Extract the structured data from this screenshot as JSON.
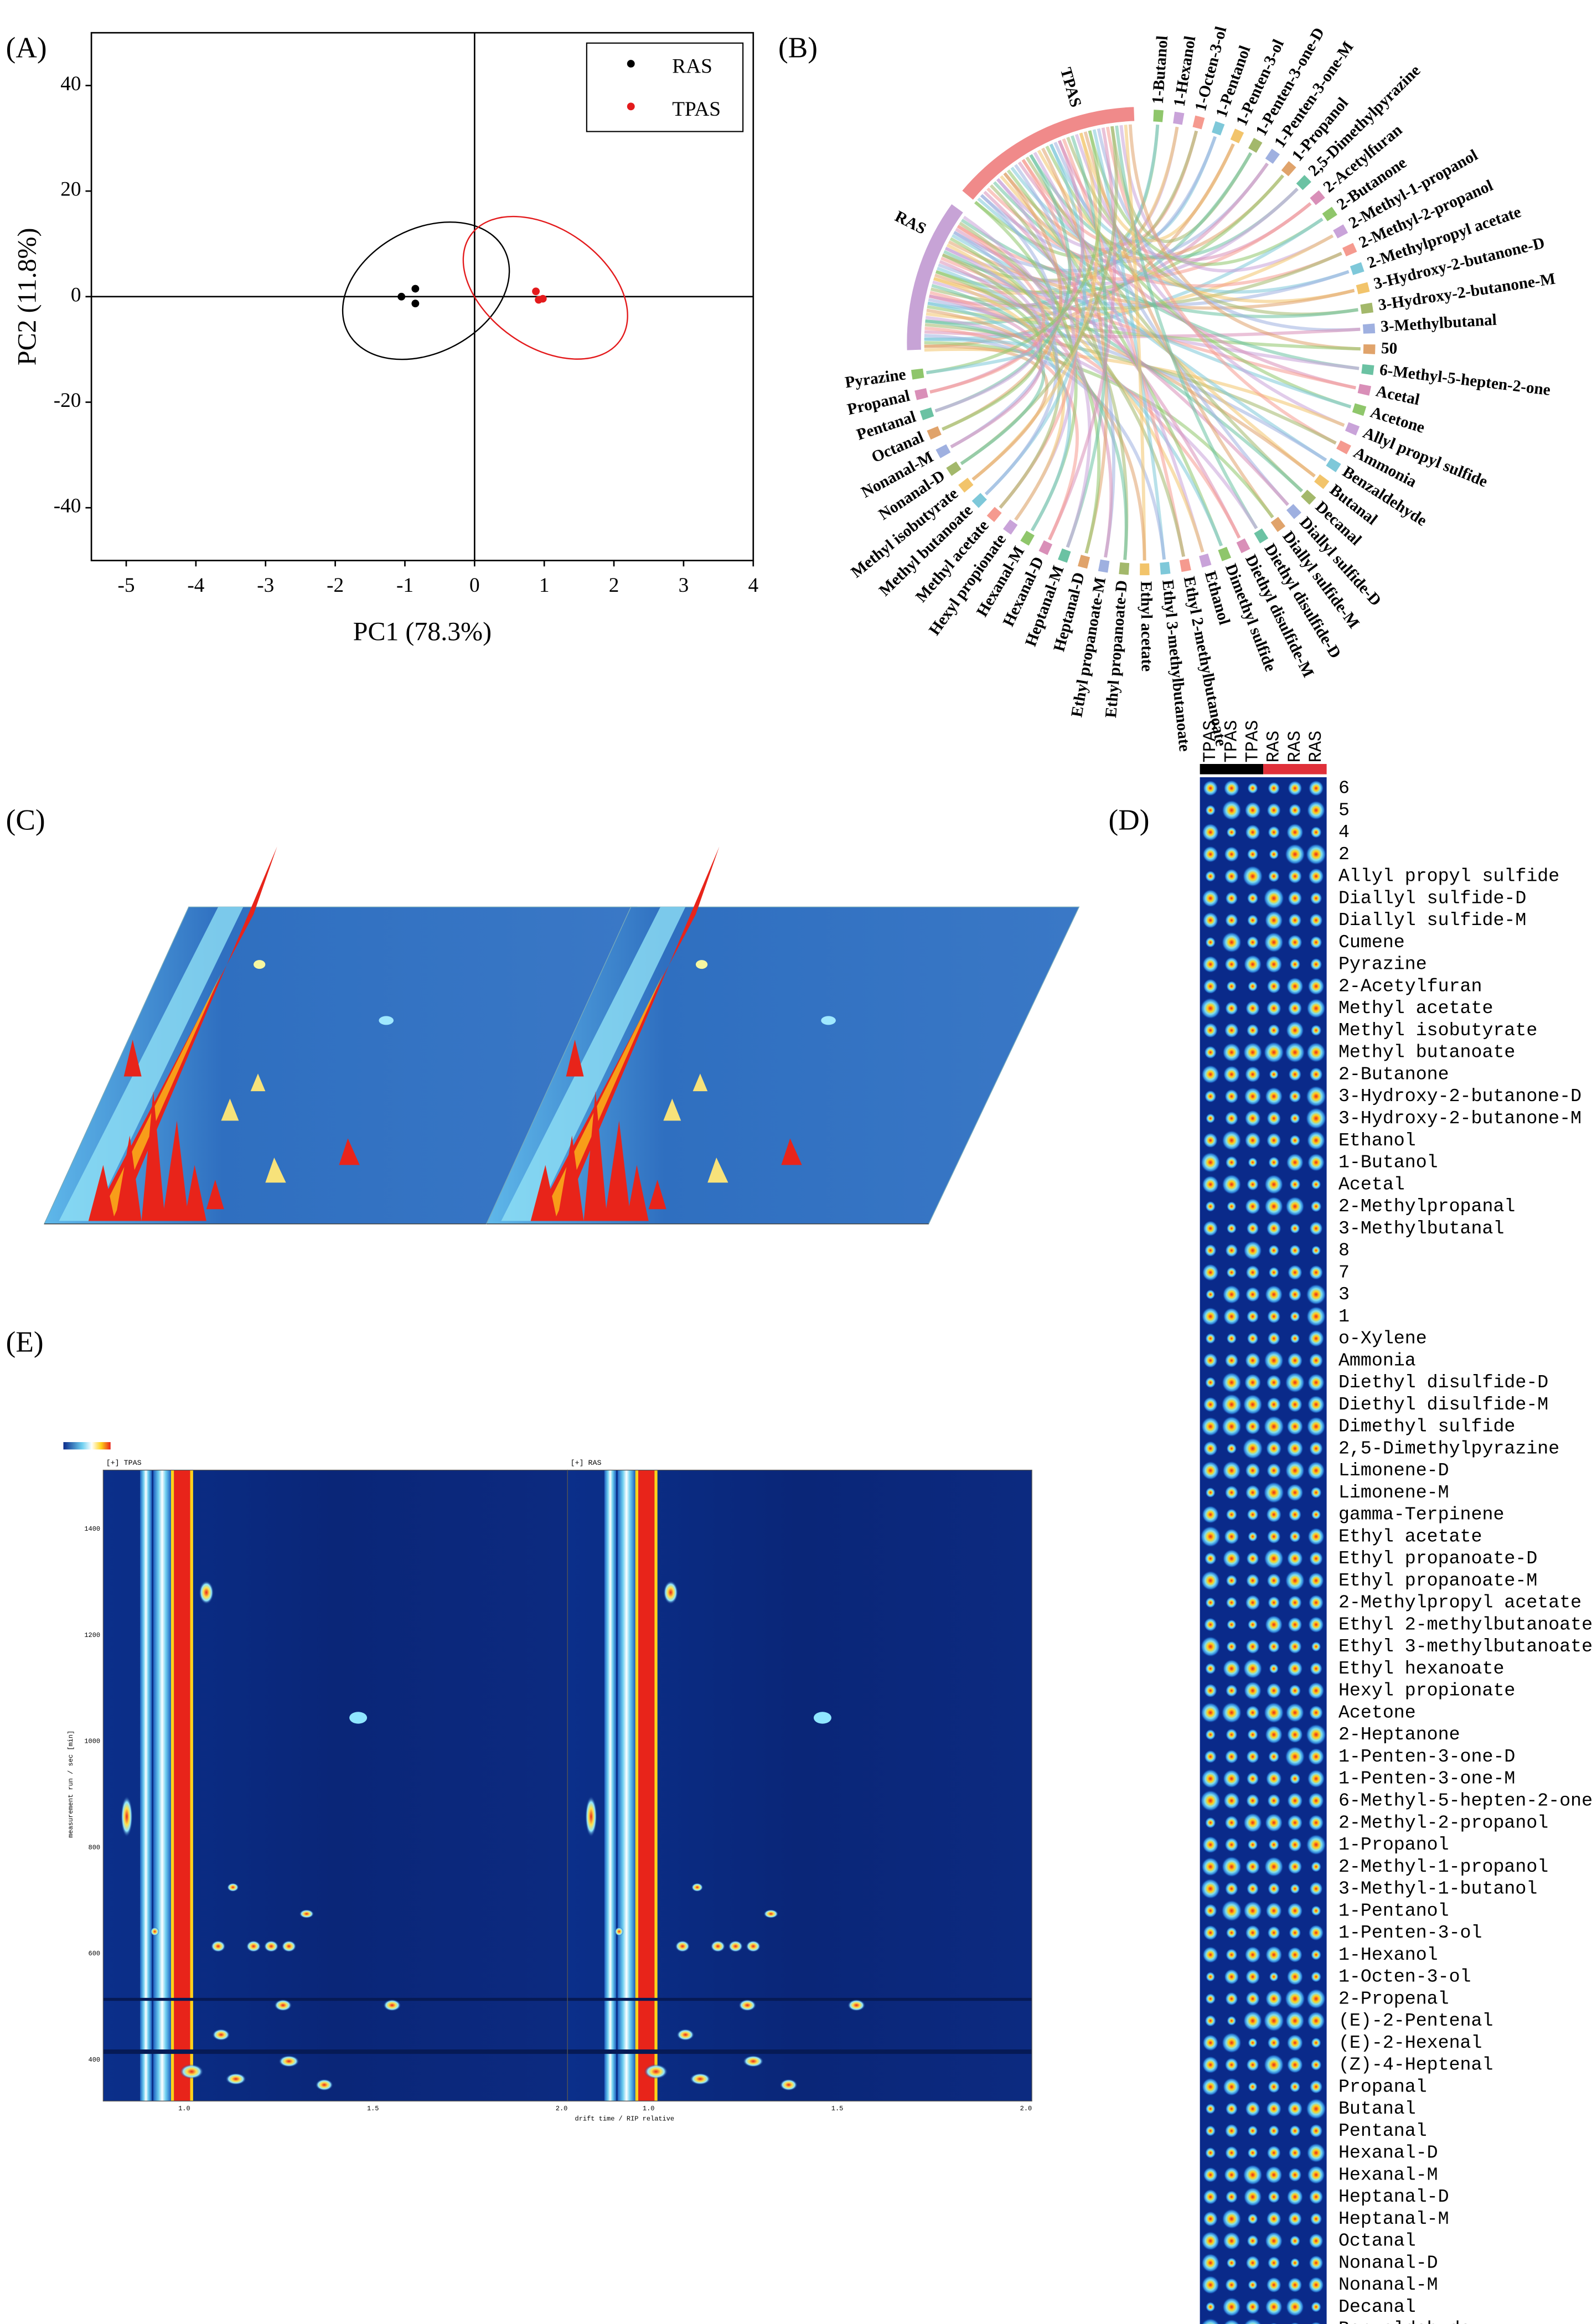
{
  "panel_labels": [
    "(A)",
    "(B)",
    "(C)",
    "(D)",
    "(E)"
  ],
  "chart_data": {
    "type": "scatter",
    "xlabel": "PC1 (78.3%)",
    "ylabel": "PC2 (11.8%)",
    "xlim": [
      -5.5,
      4
    ],
    "ylim": [
      -50,
      50
    ],
    "xticks": [
      -5,
      -4,
      -3,
      -2,
      -1,
      0,
      1,
      2,
      3,
      4
    ],
    "yticks": [
      -40,
      -20,
      0,
      20,
      40
    ],
    "legend": "upper right",
    "series": [
      {
        "name": "RAS",
        "color": "#000000",
        "x": [
          -1.05,
          -0.85,
          -0.85
        ],
        "values": [
          0,
          1.5,
          -1.3
        ]
      },
      {
        "name": "TPAS",
        "color": "#e31a1c",
        "x": [
          0.88,
          0.92,
          0.98
        ],
        "values": [
          1,
          -0.6,
          -0.4
        ]
      }
    ]
  },
  "chord": {
    "groups": [
      "TPAS",
      "RAS"
    ],
    "labels": [
      "1-Butanol",
      "1-Hexanol",
      "1-Octen-3-ol",
      "1-Pentanol",
      "1-Penten-3-ol",
      "1-Penten-3-one-D",
      "1-Penten-3-one-M",
      "1-Propanol",
      "2,5-Dimethylpyrazine",
      "2-Acetylfuran",
      "2-Butanone",
      "2-Methyl-1-propanol",
      "2-Methyl-2-propanol",
      "2-Methylpropyl acetate",
      "3-Hydroxy-2-butanone-D",
      "3-Hydroxy-2-butanone-M",
      "3-Methylbutanal",
      "50",
      "6-Methyl-5-hepten-2-one",
      "Acetal",
      "Acetone",
      "Allyl propyl sulfide",
      "Ammonia",
      "Benzaldehyde",
      "Butanal",
      "Decanal",
      "Diallyl sulfide-D",
      "Diallyl sulfide-M",
      "Diethyl disulfide-D",
      "Diethyl disulfide-M",
      "Dimethyl sulfide",
      "Ethanol",
      "Ethyl 2-methylbutanoate",
      "Ethyl 3-methylbutanoate",
      "Ethyl acetate",
      "Ethyl propanoate-D",
      "Ethyl propanoate-M",
      "Heptanal-D",
      "Heptanal-M",
      "Hexanal-D",
      "Hexanal-M",
      "Hexyl propionate",
      "Methyl acetate",
      "Methyl butanoate",
      "Methyl isobutyrate",
      "Nonanal-D",
      "Nonanal-M",
      "Octanal",
      "Pentanal",
      "Propanal",
      "Pyrazine"
    ]
  },
  "heatmap": {
    "columns": [
      "TPAS",
      "TPAS",
      "TPAS",
      "RAS",
      "RAS",
      "RAS"
    ],
    "rows": [
      "6",
      "5",
      "4",
      "2",
      "Allyl propyl sulfide",
      "Diallyl sulfide-D",
      "Diallyl sulfide-M",
      "Cumene",
      "Pyrazine",
      "2-Acetylfuran",
      "Methyl acetate",
      "Methyl isobutyrate",
      "Methyl butanoate",
      "2-Butanone",
      "3-Hydroxy-2-butanone-D",
      "3-Hydroxy-2-butanone-M",
      "Ethanol",
      "1-Butanol",
      "Acetal",
      "2-Methylpropanal",
      "3-Methylbutanal",
      "8",
      "7",
      "3",
      "1",
      "o-Xylene",
      "Ammonia",
      "Diethyl disulfide-D",
      "Diethyl disulfide-M",
      "Dimethyl sulfide",
      "2,5-Dimethylpyrazine",
      "Limonene-D",
      "Limonene-M",
      "gamma-Terpinene",
      "Ethyl acetate",
      "Ethyl propanoate-D",
      "Ethyl propanoate-M",
      "2-Methylpropyl acetate",
      "Ethyl 2-methylbutanoate",
      "Ethyl 3-methylbutanoate",
      "Ethyl hexanoate",
      "Hexyl propionate",
      "Acetone",
      "2-Heptanone",
      "1-Penten-3-one-D",
      "1-Penten-3-one-M",
      "6-Methyl-5-hepten-2-one",
      "2-Methyl-2-propanol",
      "1-Propanol",
      "2-Methyl-1-propanol",
      "3-Methyl-1-butanol",
      "1-Pentanol",
      "1-Penten-3-ol",
      "1-Hexanol",
      "1-Octen-3-ol",
      "2-Propenal",
      "(E)-2-Pentenal",
      "(E)-2-Hexenal",
      "(Z)-4-Heptenal",
      "Propanal",
      "Butanal",
      "Pentanal",
      "Hexanal-D",
      "Hexanal-M",
      "Heptanal-D",
      "Heptanal-M",
      "Octanal",
      "Nonanal-D",
      "Nonanal-M",
      "Decanal",
      "Benzaldehyde"
    ]
  },
  "spectra": {
    "panels": [
      "[+] TPAS",
      "[+] RAS"
    ],
    "x_ticks": [
      "1.0",
      "1.5",
      "2.0"
    ],
    "y_ticks": [
      "1400",
      "1200",
      "1000",
      "800",
      "600",
      "400"
    ],
    "x_title": "drift time / RIP relative",
    "y_title": "measurement run / sec [min]"
  }
}
